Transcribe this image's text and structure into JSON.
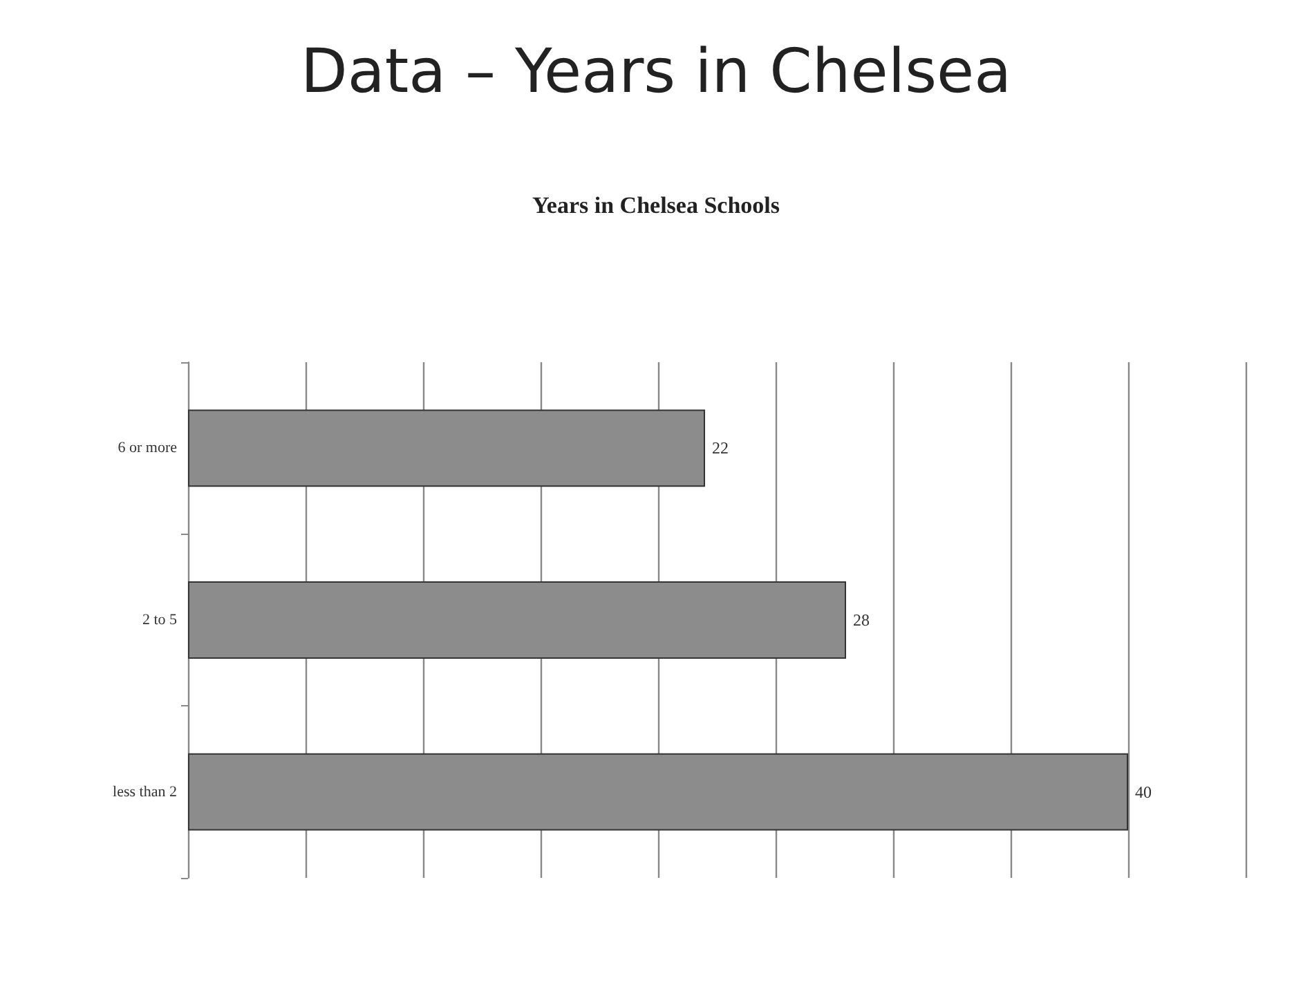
{
  "chart_data": {
    "type": "bar",
    "orientation": "horizontal",
    "title": "Data – Years in Chelsea",
    "subtitle": "Years in Chelsea Schools",
    "categories": [
      "6 or more",
      "2 to 5",
      "less than 2"
    ],
    "values": [
      22,
      28,
      40
    ],
    "color": "#8c8c8c",
    "data_labels": true,
    "xlim": [
      0,
      45
    ],
    "xticks": [
      {
        "value": 0,
        "label": null
      },
      {
        "value": 5,
        "label": null
      },
      {
        "value": 10,
        "label": null
      },
      {
        "value": 15,
        "label": null
      },
      {
        "value": 20,
        "label": null
      },
      {
        "value": 25,
        "label": null
      },
      {
        "value": 30,
        "label": null
      },
      {
        "value": 35,
        "label": null
      },
      {
        "value": 40,
        "label": null
      },
      {
        "value": 45,
        "label": null
      }
    ],
    "grid": "x",
    "tick_labels": "y"
  }
}
